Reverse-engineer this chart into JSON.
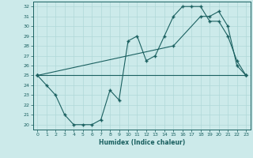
{
  "xlabel": "Humidex (Indice chaleur)",
  "bg_color": "#cceaea",
  "line_color": "#1a6060",
  "grid_color": "#b0d8d8",
  "xlim": [
    -0.5,
    23.5
  ],
  "ylim": [
    19.5,
    32.5
  ],
  "xticks": [
    0,
    1,
    2,
    3,
    4,
    5,
    6,
    7,
    8,
    9,
    10,
    11,
    12,
    13,
    14,
    15,
    16,
    17,
    18,
    19,
    20,
    21,
    22,
    23
  ],
  "yticks": [
    20,
    21,
    22,
    23,
    24,
    25,
    26,
    27,
    28,
    29,
    30,
    31,
    32
  ],
  "line1_x": [
    0,
    1,
    2,
    3,
    4,
    5,
    6,
    7,
    8,
    9,
    10,
    11,
    12,
    13,
    14,
    15,
    16,
    17,
    18,
    19,
    20,
    21,
    22,
    23
  ],
  "line1_y": [
    25.0,
    24.0,
    23.0,
    21.0,
    20.0,
    20.0,
    20.0,
    20.5,
    23.5,
    22.5,
    28.5,
    29.0,
    26.5,
    27.0,
    29.0,
    31.0,
    32.0,
    32.0,
    32.0,
    30.5,
    30.5,
    29.0,
    26.5,
    25.0
  ],
  "line2_x": [
    0,
    15,
    18,
    19,
    20,
    21,
    22,
    23
  ],
  "line2_y": [
    25.0,
    28.0,
    31.0,
    31.0,
    31.5,
    30.0,
    26.0,
    25.0
  ],
  "line3_x": [
    0,
    23
  ],
  "line3_y": [
    25.0,
    25.0
  ]
}
